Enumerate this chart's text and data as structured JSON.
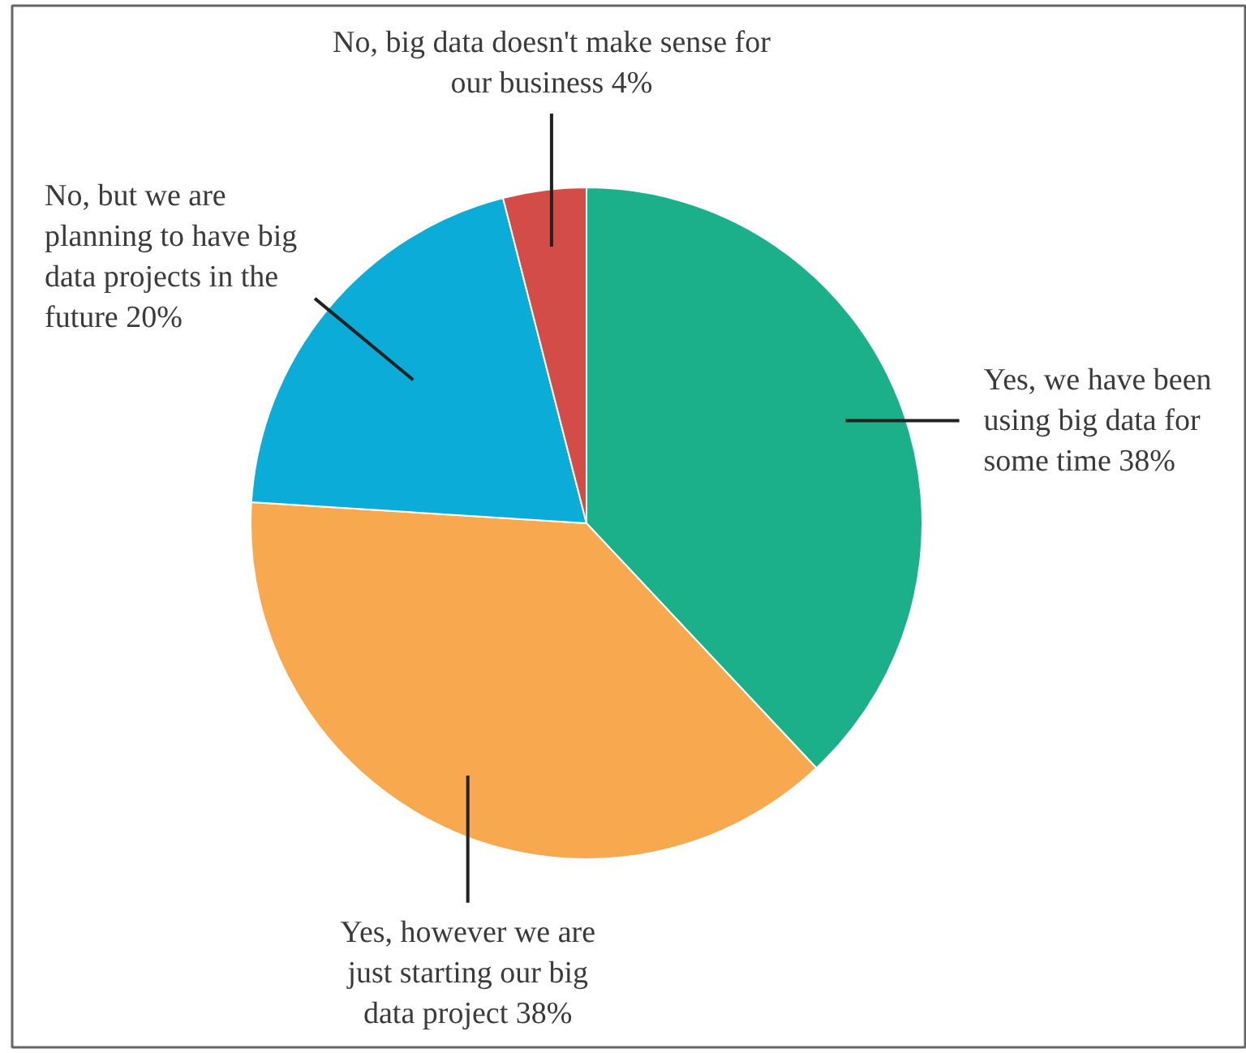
{
  "chart_data": {
    "type": "pie",
    "categories": [
      "Yes, we have been using big data for some time",
      "Yes, however we are just starting our big data project",
      "No, but we are planning to have big data projects in the future",
      "No, big data doesn't make sense for our business"
    ],
    "values": [
      38,
      38,
      20,
      4
    ],
    "colors": [
      "#1cb08a",
      "#f8a94f",
      "#0badd8",
      "#d44c48"
    ],
    "value_labels": [
      "38%",
      "38%",
      "20%",
      "4%"
    ]
  }
}
